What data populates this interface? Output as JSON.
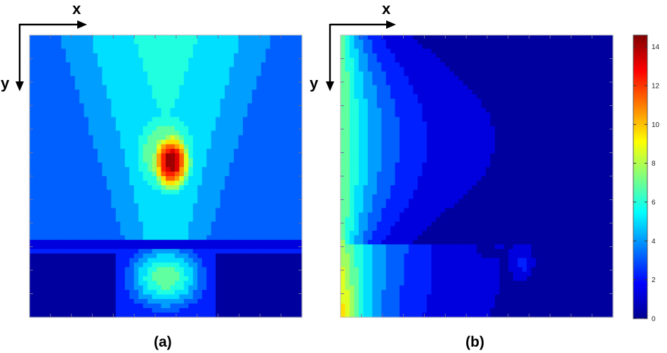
{
  "chart_data": [
    {
      "type": "heatmap",
      "panel_label": "(a)",
      "x_axis_label": "x",
      "y_axis_label": "y",
      "description_of_field": "central hotspot peaking near 14.5, secondary lobe near 7, background near 0",
      "zmin": 0,
      "zmax": 14.6,
      "colormap": "jet",
      "grid": false
    },
    {
      "type": "heatmap",
      "panel_label": "(b)",
      "x_axis_label": "x",
      "y_axis_label": "y",
      "zmin": 0,
      "zmax": 14.6,
      "colormap": "jet",
      "grid": false
    }
  ],
  "colorbar": {
    "ticks": [
      0,
      2,
      4,
      6,
      8,
      10,
      12,
      14
    ],
    "tick_labels": [
      "0",
      "2",
      "4",
      "6",
      "8",
      "10",
      "12",
      "14"
    ],
    "min": 0,
    "max": 14.6
  }
}
